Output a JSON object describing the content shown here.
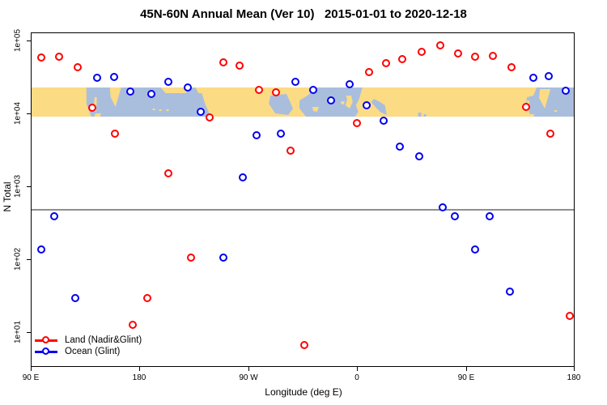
{
  "title": "45N-60N Annual Mean (Ver 10)   2015-01-01 to 2020-12-18",
  "colors": {
    "land_series": "#FF0000",
    "ocean_series": "#0000EE",
    "map_land": "#FCDB85",
    "map_ocean": "#A9BEDD",
    "reference_line": "#8F8F8F",
    "axis": "#000000"
  },
  "legend": [
    {
      "label": "Land (Nadir&Glint)",
      "color": "#FF0000"
    },
    {
      "label": "Ocean (Glint)",
      "color": "#0000EE"
    }
  ],
  "chart_data": {
    "type": "scatter",
    "title": "45N-60N Annual Mean (Ver 10)   2015-01-01 to 2020-12-18",
    "x_axis": {
      "label": "Longitude (deg E)",
      "tick_labels": [
        "90 E",
        "180",
        "90 W",
        "0",
        "90 E",
        "180"
      ],
      "tick_positions_deg_east": [
        90,
        180,
        270,
        360,
        450,
        540
      ],
      "range_deg_east": [
        90,
        540
      ],
      "note": "axis runs eastward from 90E around the globe past 180, 90W, 0, 90E to 180"
    },
    "y_axis": {
      "label": "N Total",
      "scale": "log10",
      "tick_labels": [
        "1e+01",
        "1e+02",
        "1e+03",
        "1e+04",
        "1e+05"
      ],
      "tick_values": [
        10,
        100,
        1000,
        10000,
        100000
      ],
      "range": [
        3.2,
        130000
      ]
    },
    "reference_line_y": 500,
    "map_band_overlay": {
      "y_from": 10000,
      "y_to": 23000,
      "description": "world coastline strip for latitude band 45N-60N, land yellow, ocean light blue"
    },
    "grid": false,
    "legend_position": "bottom-left",
    "series": [
      {
        "name": "Land (Nadir&Glint)",
        "color": "#FF0000",
        "points": [
          [
            98,
            60000
          ],
          [
            113,
            62000
          ],
          [
            128,
            44000
          ],
          [
            140,
            12300
          ],
          [
            159,
            5400
          ],
          [
            174,
            13
          ],
          [
            186,
            30
          ],
          [
            203,
            1550
          ],
          [
            222,
            108
          ],
          [
            237,
            9000
          ],
          [
            249,
            51000
          ],
          [
            262,
            46000
          ],
          [
            278,
            21500
          ],
          [
            292,
            20000
          ],
          [
            304,
            3200
          ],
          [
            316,
            6.8
          ],
          [
            359,
            7600
          ],
          [
            369,
            38000
          ],
          [
            383,
            50000
          ],
          [
            397,
            57000
          ],
          [
            413,
            72000
          ],
          [
            428,
            88000
          ],
          [
            443,
            68000
          ],
          [
            457,
            62000
          ],
          [
            472,
            63000
          ],
          [
            487,
            44000
          ],
          [
            499,
            12600
          ],
          [
            519,
            5400
          ],
          [
            535,
            17
          ]
        ]
      },
      {
        "name": "Ocean (Glint)",
        "color": "#0000EE",
        "points": [
          [
            98,
            139
          ],
          [
            109,
            400
          ],
          [
            126,
            30
          ],
          [
            144,
            31600
          ],
          [
            158,
            32400
          ],
          [
            172,
            20500
          ],
          [
            189,
            19000
          ],
          [
            203,
            27800
          ],
          [
            219,
            23300
          ],
          [
            230,
            10800
          ],
          [
            249,
            108
          ],
          [
            265,
            1360
          ],
          [
            276,
            5100
          ],
          [
            296,
            5400
          ],
          [
            308,
            27800
          ],
          [
            323,
            21500
          ],
          [
            338,
            15500
          ],
          [
            353,
            25800
          ],
          [
            367,
            13200
          ],
          [
            381,
            8150
          ],
          [
            395,
            3600
          ],
          [
            411,
            2640
          ],
          [
            430,
            527
          ],
          [
            440,
            400
          ],
          [
            457,
            139
          ],
          [
            469,
            400
          ],
          [
            486,
            37
          ],
          [
            505,
            31600
          ],
          [
            518,
            33300
          ],
          [
            532,
            21000
          ]
        ]
      }
    ]
  }
}
